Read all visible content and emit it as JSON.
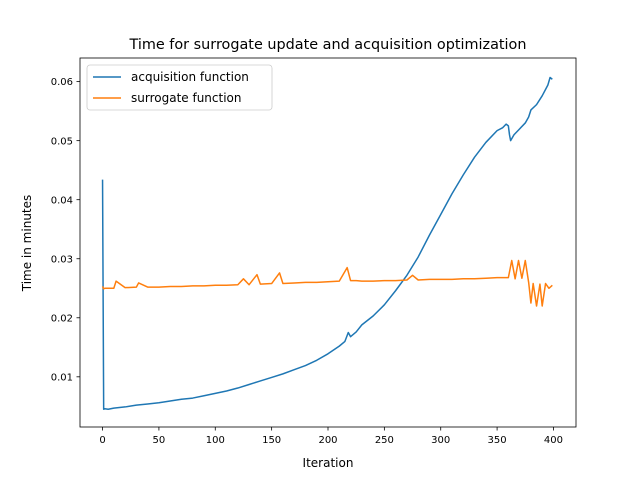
{
  "chart_data": {
    "type": "line",
    "title": "Time for surrogate update and acquisition optimization",
    "xlabel": "Iteration",
    "ylabel": "Time in minutes",
    "xlim": [
      -20,
      420
    ],
    "ylim": [
      0.0015,
      0.064
    ],
    "xticks": [
      0,
      50,
      100,
      150,
      200,
      250,
      300,
      350,
      400
    ],
    "yticks": [
      0.01,
      0.02,
      0.03,
      0.04,
      0.05,
      0.06
    ],
    "xtick_labels": [
      "0",
      "50",
      "100",
      "150",
      "200",
      "250",
      "300",
      "350",
      "400"
    ],
    "ytick_labels": [
      "0.01",
      "0.02",
      "0.03",
      "0.04",
      "0.05",
      "0.06"
    ],
    "grid": false,
    "legend_position": "top-left",
    "series": [
      {
        "name": "acquisition function",
        "color": "#1f77b4",
        "x": [
          0,
          1,
          2,
          5,
          10,
          20,
          30,
          40,
          50,
          60,
          70,
          80,
          90,
          100,
          110,
          120,
          130,
          140,
          150,
          160,
          170,
          180,
          190,
          200,
          210,
          215,
          218,
          220,
          225,
          230,
          240,
          250,
          260,
          270,
          280,
          290,
          300,
          310,
          320,
          330,
          340,
          350,
          355,
          358,
          360,
          361,
          362,
          365,
          370,
          375,
          378,
          380,
          385,
          390,
          395,
          397,
          399
        ],
        "values": [
          0.0434,
          0.0045,
          0.0046,
          0.0045,
          0.0047,
          0.0049,
          0.0052,
          0.0054,
          0.0056,
          0.0059,
          0.0062,
          0.0064,
          0.0068,
          0.0072,
          0.0076,
          0.0081,
          0.0087,
          0.0093,
          0.0099,
          0.0105,
          0.0112,
          0.0119,
          0.0128,
          0.0139,
          0.0152,
          0.016,
          0.0175,
          0.0168,
          0.0176,
          0.0188,
          0.0203,
          0.0222,
          0.0246,
          0.0272,
          0.0303,
          0.034,
          0.0375,
          0.041,
          0.0442,
          0.0472,
          0.0497,
          0.0517,
          0.0522,
          0.0528,
          0.0525,
          0.051,
          0.05,
          0.051,
          0.052,
          0.053,
          0.054,
          0.0552,
          0.0561,
          0.0576,
          0.0594,
          0.0607,
          0.0604
        ]
      },
      {
        "name": "surrogate function",
        "color": "#ff7f0e",
        "x": [
          0,
          1,
          2,
          5,
          10,
          12,
          20,
          30,
          32,
          40,
          50,
          60,
          70,
          80,
          90,
          100,
          110,
          120,
          125,
          130,
          137,
          140,
          150,
          157,
          160,
          170,
          180,
          190,
          200,
          210,
          217,
          220,
          225,
          230,
          240,
          250,
          260,
          270,
          275,
          280,
          290,
          300,
          310,
          320,
          330,
          340,
          350,
          360,
          363,
          366,
          369,
          372,
          375,
          378,
          380,
          382,
          385,
          388,
          390,
          393,
          396,
          399
        ],
        "values": [
          0.0253,
          0.0249,
          0.025,
          0.025,
          0.025,
          0.0262,
          0.0251,
          0.0252,
          0.0259,
          0.0252,
          0.0252,
          0.0253,
          0.0253,
          0.0254,
          0.0254,
          0.0255,
          0.0255,
          0.0256,
          0.0266,
          0.0256,
          0.0273,
          0.0257,
          0.0258,
          0.0276,
          0.0258,
          0.0259,
          0.026,
          0.026,
          0.0261,
          0.0262,
          0.0285,
          0.0263,
          0.0263,
          0.0262,
          0.0262,
          0.0263,
          0.0263,
          0.0264,
          0.0272,
          0.0264,
          0.0265,
          0.0265,
          0.0265,
          0.0266,
          0.0266,
          0.0267,
          0.0268,
          0.0268,
          0.0297,
          0.0266,
          0.0297,
          0.0267,
          0.0297,
          0.026,
          0.0225,
          0.0258,
          0.022,
          0.0257,
          0.022,
          0.0258,
          0.025,
          0.0255
        ]
      }
    ]
  }
}
